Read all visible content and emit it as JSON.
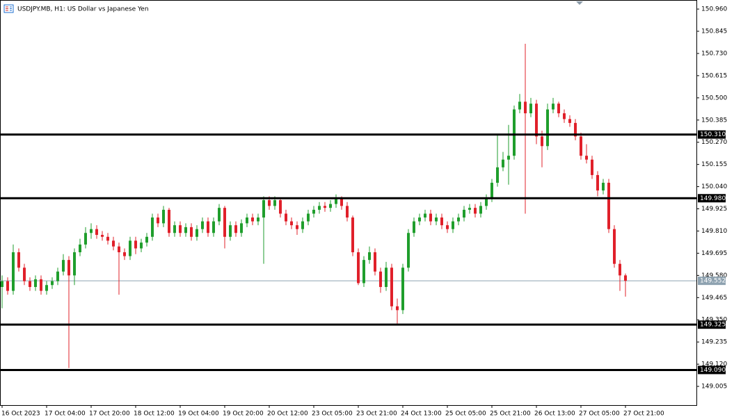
{
  "chart_data": {
    "type": "candlestick",
    "title": "USDJPY.MB, H1:  US Dollar vs Japanese Yen",
    "categories": [
      "16 Oct 2023",
      null,
      null,
      null,
      null,
      null,
      null,
      null,
      "17 Oct 04:00",
      null,
      null,
      null,
      null,
      null,
      null,
      null,
      "17 Oct 20:00",
      null,
      null,
      null,
      null,
      null,
      null,
      null,
      "18 Oct 12:00",
      null,
      null,
      null,
      null,
      null,
      null,
      null,
      "19 Oct 04:00",
      null,
      null,
      null,
      null,
      null,
      null,
      null,
      "19 Oct 20:00",
      null,
      null,
      null,
      null,
      null,
      null,
      null,
      "20 Oct 12:00",
      null,
      null,
      null,
      null,
      null,
      null,
      null,
      "23 Oct 05:00",
      null,
      null,
      null,
      null,
      null,
      null,
      null,
      "23 Oct 21:00",
      null,
      null,
      null,
      null,
      null,
      null,
      null,
      "24 Oct 13:00",
      null,
      null,
      null,
      null,
      null,
      null,
      null,
      "25 Oct 05:00",
      null,
      null,
      null,
      null,
      null,
      null,
      null,
      "25 Oct 21:00",
      null,
      null,
      null,
      null,
      null,
      null,
      null,
      "26 Oct 13:00",
      null,
      null,
      null,
      null,
      null,
      null,
      null,
      "27 Oct 05:00",
      null,
      null,
      null,
      null,
      null,
      null,
      null,
      "27 Oct 21:00"
    ],
    "open": [
      149.52,
      149.55,
      149.5,
      149.7,
      149.62,
      149.55,
      149.52,
      149.56,
      149.5,
      149.53,
      149.55,
      149.6,
      149.66,
      149.58,
      149.7,
      149.74,
      149.8,
      149.82,
      149.79,
      149.78,
      149.76,
      149.73,
      149.7,
      149.68,
      149.76,
      149.72,
      149.75,
      149.78,
      149.88,
      149.85,
      149.92,
      149.8,
      149.84,
      149.8,
      149.83,
      149.78,
      149.82,
      149.86,
      149.8,
      149.86,
      149.93,
      149.78,
      149.84,
      149.8,
      149.85,
      149.88,
      149.86,
      149.88,
      149.97,
      149.94,
      149.97,
      149.9,
      149.86,
      149.84,
      149.82,
      149.86,
      149.9,
      149.92,
      149.94,
      149.93,
      149.95,
      149.98,
      149.94,
      149.88,
      149.7,
      149.54,
      149.66,
      149.7,
      149.6,
      149.52,
      149.62,
      149.42,
      149.4,
      149.62,
      149.8,
      149.86,
      149.88,
      149.9,
      149.86,
      149.88,
      149.84,
      149.82,
      149.86,
      149.88,
      149.92,
      149.93,
      149.9,
      149.94,
      149.98,
      150.06,
      150.14,
      150.18,
      150.2,
      150.44,
      150.48,
      150.42,
      150.47,
      150.3,
      150.25,
      150.44,
      150.47,
      150.42,
      150.39,
      150.37,
      150.3,
      150.2,
      150.18,
      150.1,
      150.02,
      150.06,
      149.82,
      149.64,
      149.58
    ],
    "high": [
      149.58,
      149.57,
      149.74,
      149.72,
      149.64,
      149.57,
      149.58,
      149.58,
      149.55,
      149.57,
      149.62,
      149.69,
      149.68,
      149.72,
      149.77,
      149.83,
      149.85,
      149.84,
      149.81,
      149.8,
      149.78,
      149.75,
      149.72,
      149.78,
      149.78,
      149.77,
      149.8,
      149.9,
      149.9,
      149.94,
      149.93,
      149.86,
      149.86,
      149.85,
      149.85,
      149.84,
      149.88,
      149.88,
      149.88,
      149.95,
      149.94,
      149.86,
      149.86,
      149.87,
      149.9,
      149.9,
      149.9,
      149.99,
      149.99,
      149.99,
      149.98,
      149.92,
      149.88,
      149.86,
      149.88,
      149.92,
      149.94,
      149.96,
      149.96,
      149.97,
      150.0,
      149.99,
      149.96,
      149.89,
      149.72,
      149.68,
      149.73,
      149.72,
      149.62,
      149.65,
      149.64,
      149.46,
      149.64,
      149.82,
      149.88,
      149.9,
      149.92,
      149.92,
      149.9,
      149.9,
      149.86,
      149.88,
      149.9,
      149.94,
      149.95,
      149.95,
      149.96,
      150.0,
      150.08,
      150.31,
      150.22,
      150.36,
      150.46,
      150.52,
      150.78,
      150.5,
      150.49,
      150.33,
      150.47,
      150.5,
      150.48,
      150.44,
      150.41,
      150.39,
      150.32,
      150.26,
      150.2,
      150.12,
      150.08,
      150.08,
      149.84,
      149.66,
      149.59
    ],
    "low": [
      149.41,
      149.48,
      149.48,
      149.6,
      149.53,
      149.5,
      149.5,
      149.48,
      149.48,
      149.51,
      149.53,
      149.58,
      149.1,
      149.53,
      149.68,
      149.72,
      149.77,
      149.77,
      149.76,
      149.74,
      149.71,
      149.48,
      149.66,
      149.66,
      149.69,
      149.7,
      149.73,
      149.76,
      149.83,
      149.83,
      149.78,
      149.78,
      149.78,
      149.78,
      149.76,
      149.76,
      149.8,
      149.78,
      149.78,
      149.84,
      149.72,
      149.76,
      149.78,
      149.78,
      149.83,
      149.84,
      149.84,
      149.64,
      149.92,
      149.92,
      149.88,
      149.84,
      149.82,
      149.79,
      149.8,
      149.84,
      149.88,
      149.9,
      149.91,
      149.91,
      149.93,
      149.92,
      149.86,
      149.68,
      149.53,
      149.52,
      149.64,
      149.58,
      149.49,
      149.5,
      149.4,
      149.33,
      149.38,
      149.6,
      149.78,
      149.84,
      149.86,
      149.84,
      149.84,
      149.82,
      149.8,
      149.8,
      149.84,
      149.86,
      149.9,
      149.88,
      149.88,
      149.92,
      149.96,
      150.04,
      150.12,
      150.05,
      150.18,
      150.42,
      149.9,
      150.4,
      150.26,
      150.14,
      150.23,
      150.42,
      150.4,
      150.37,
      150.35,
      150.28,
      150.18,
      150.16,
      150.08,
      149.99,
      150.0,
      149.8,
      149.62,
      149.5,
      149.47
    ],
    "close": [
      149.55,
      149.5,
      149.7,
      149.62,
      149.55,
      149.52,
      149.56,
      149.5,
      149.53,
      149.55,
      149.6,
      149.66,
      149.58,
      149.7,
      149.74,
      149.8,
      149.82,
      149.79,
      149.78,
      149.76,
      149.73,
      149.7,
      149.68,
      149.76,
      149.72,
      149.75,
      149.78,
      149.88,
      149.85,
      149.92,
      149.8,
      149.84,
      149.8,
      149.83,
      149.78,
      149.82,
      149.86,
      149.8,
      149.86,
      149.93,
      149.78,
      149.84,
      149.8,
      149.85,
      149.88,
      149.86,
      149.88,
      149.97,
      149.94,
      149.97,
      149.9,
      149.86,
      149.84,
      149.82,
      149.86,
      149.9,
      149.92,
      149.94,
      149.93,
      149.95,
      149.98,
      149.94,
      149.88,
      149.7,
      149.54,
      149.66,
      149.7,
      149.6,
      149.52,
      149.62,
      149.42,
      149.4,
      149.62,
      149.8,
      149.86,
      149.88,
      149.9,
      149.86,
      149.88,
      149.84,
      149.82,
      149.86,
      149.88,
      149.92,
      149.93,
      149.9,
      149.94,
      149.98,
      150.06,
      150.14,
      150.18,
      150.2,
      150.44,
      150.48,
      150.42,
      150.47,
      150.3,
      150.25,
      150.44,
      150.47,
      150.42,
      150.39,
      150.37,
      150.3,
      150.2,
      150.18,
      150.1,
      150.02,
      150.06,
      149.82,
      149.64,
      149.58,
      149.552
    ],
    "up_color": "#1f9e2c",
    "down_color": "#e0202a",
    "ylim": [
      148.908,
      151.007
    ],
    "yticks": [
      {
        "value": 150.96,
        "label": "150.960"
      },
      150.845,
      {
        "value": 150.73,
        "label": "150.730"
      },
      150.615,
      {
        "value": 150.5,
        "label": "150.500"
      },
      150.385,
      {
        "value": 150.27,
        "label": "150.270"
      },
      150.155,
      {
        "value": 150.04,
        "label": "150.040"
      },
      149.925,
      {
        "value": 149.81,
        "label": "149.810"
      },
      149.695,
      {
        "value": 149.58,
        "label": "149.580"
      },
      149.465,
      {
        "value": 149.35,
        "label": "149.350"
      },
      149.235,
      {
        "value": 149.12,
        "label": "149.120"
      },
      149.005
    ],
    "levels": [
      {
        "value": 150.31,
        "label": "150.310"
      },
      {
        "value": 149.98,
        "label": "149.980"
      },
      {
        "value": 149.325,
        "label": "149.325"
      },
      {
        "value": 149.09,
        "label": "149.090"
      }
    ],
    "current_price": {
      "value": 149.552,
      "label": "149.552"
    }
  }
}
